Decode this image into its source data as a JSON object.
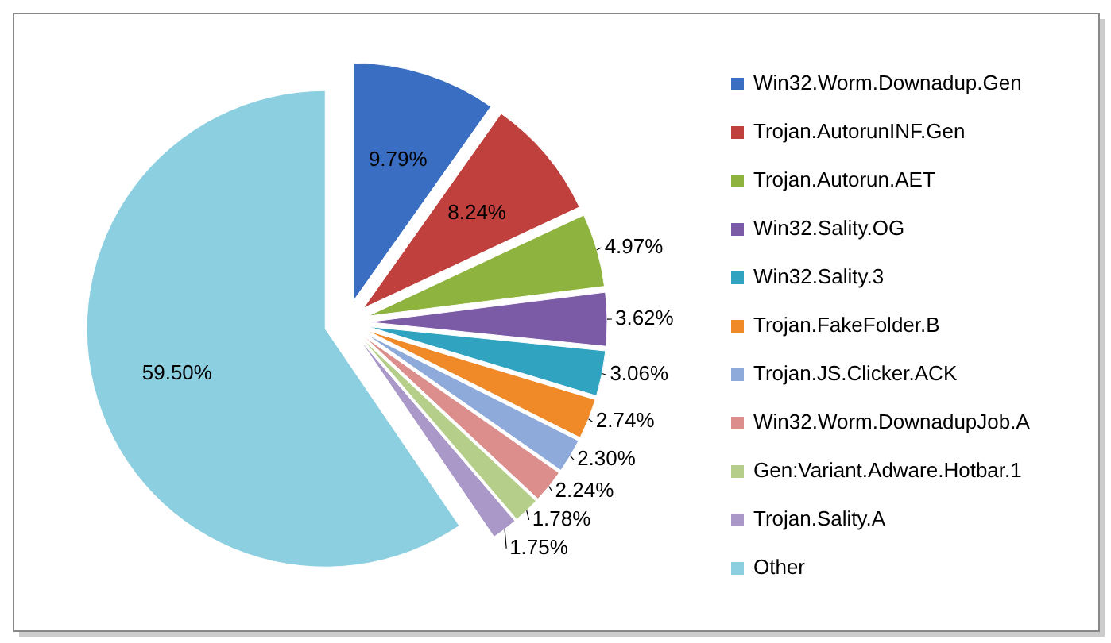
{
  "chart_data": {
    "type": "pie",
    "categories": [
      "Win32.Worm.Downadup.Gen",
      "Trojan.AutorunINF.Gen",
      "Trojan.Autorun.AET",
      "Win32.Sality.OG",
      "Win32.Sality.3",
      "Trojan.FakeFolder.B",
      "Trojan.JS.Clicker.ACK",
      "Win32.Worm.DownadupJob.A",
      "Gen:Variant.Adware.Hotbar.1",
      "Trojan.Sality.A",
      "Other"
    ],
    "values": [
      9.79,
      8.24,
      4.97,
      3.62,
      3.06,
      2.74,
      2.3,
      2.24,
      1.78,
      1.75,
      59.5
    ],
    "colors": [
      "#3a6ec2",
      "#c0403d",
      "#8fb33f",
      "#7b5aa6",
      "#2fa3bf",
      "#f08a28",
      "#8eaadb",
      "#db8e8c",
      "#b5cf8a",
      "#a998c8",
      "#8ccfe0"
    ],
    "value_labels": [
      "9.79%",
      "8.24%",
      "4.97%",
      "3.62%",
      "3.06%",
      "2.74%",
      "2.30%",
      "2.24%",
      "1.78%",
      "1.75%",
      "59.50%"
    ],
    "legend": "right"
  }
}
